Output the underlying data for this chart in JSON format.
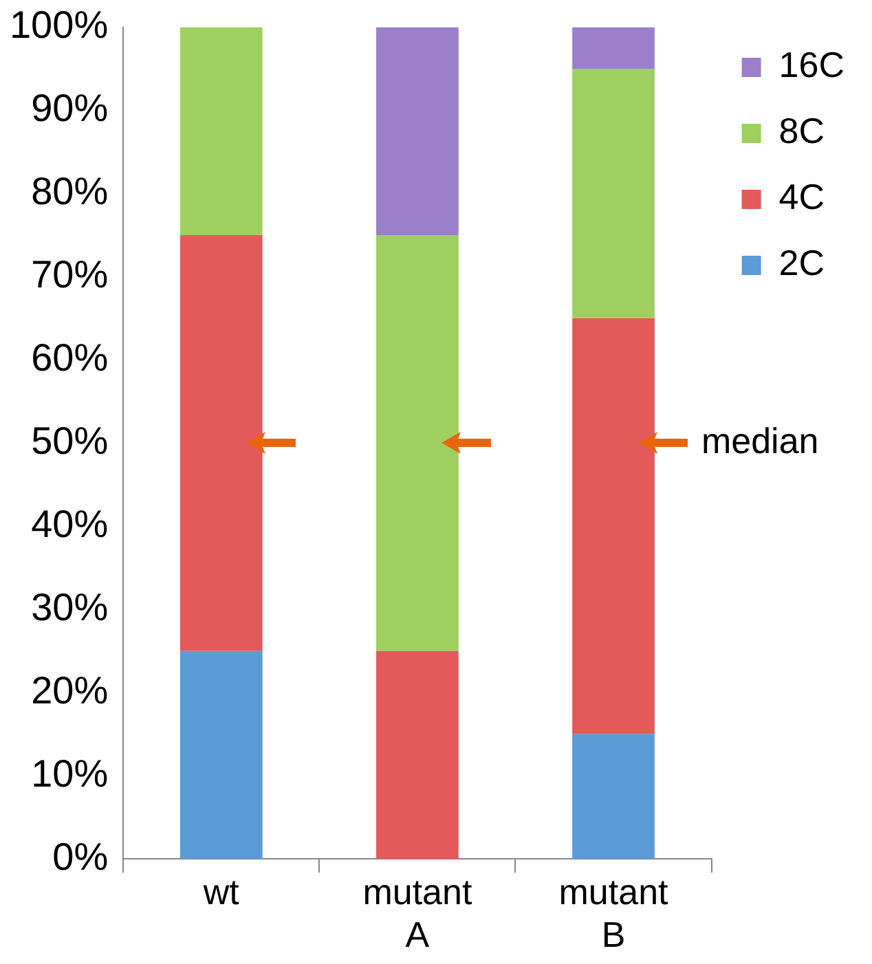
{
  "chart_data": {
    "type": "bar",
    "stacked": true,
    "categories": [
      "wt",
      "mutant A",
      "mutant B"
    ],
    "series": [
      {
        "name": "2C",
        "color": "#5b9bd8",
        "values": [
          25,
          0,
          15
        ]
      },
      {
        "name": "4C",
        "color": "#e45a5a",
        "values": [
          50,
          25,
          50
        ]
      },
      {
        "name": "8C",
        "color": "#9fcf5f",
        "values": [
          25,
          50,
          30
        ]
      },
      {
        "name": "16C",
        "color": "#9b7fcb",
        "values": [
          0,
          25,
          5
        ]
      }
    ],
    "ylim": [
      0,
      100
    ],
    "yticks": [
      {
        "value": 0,
        "label": "0%"
      },
      {
        "value": 10,
        "label": "10%"
      },
      {
        "value": 20,
        "label": "20%"
      },
      {
        "value": 30,
        "label": "30%"
      },
      {
        "value": 40,
        "label": "40%"
      },
      {
        "value": 50,
        "label": "50%"
      },
      {
        "value": 60,
        "label": "60%"
      },
      {
        "value": 70,
        "label": "70%"
      },
      {
        "value": 80,
        "label": "80%"
      },
      {
        "value": 90,
        "label": "90%"
      },
      {
        "value": 100,
        "label": "100%"
      }
    ],
    "legend": "top right",
    "annotations": [
      "median"
    ]
  }
}
